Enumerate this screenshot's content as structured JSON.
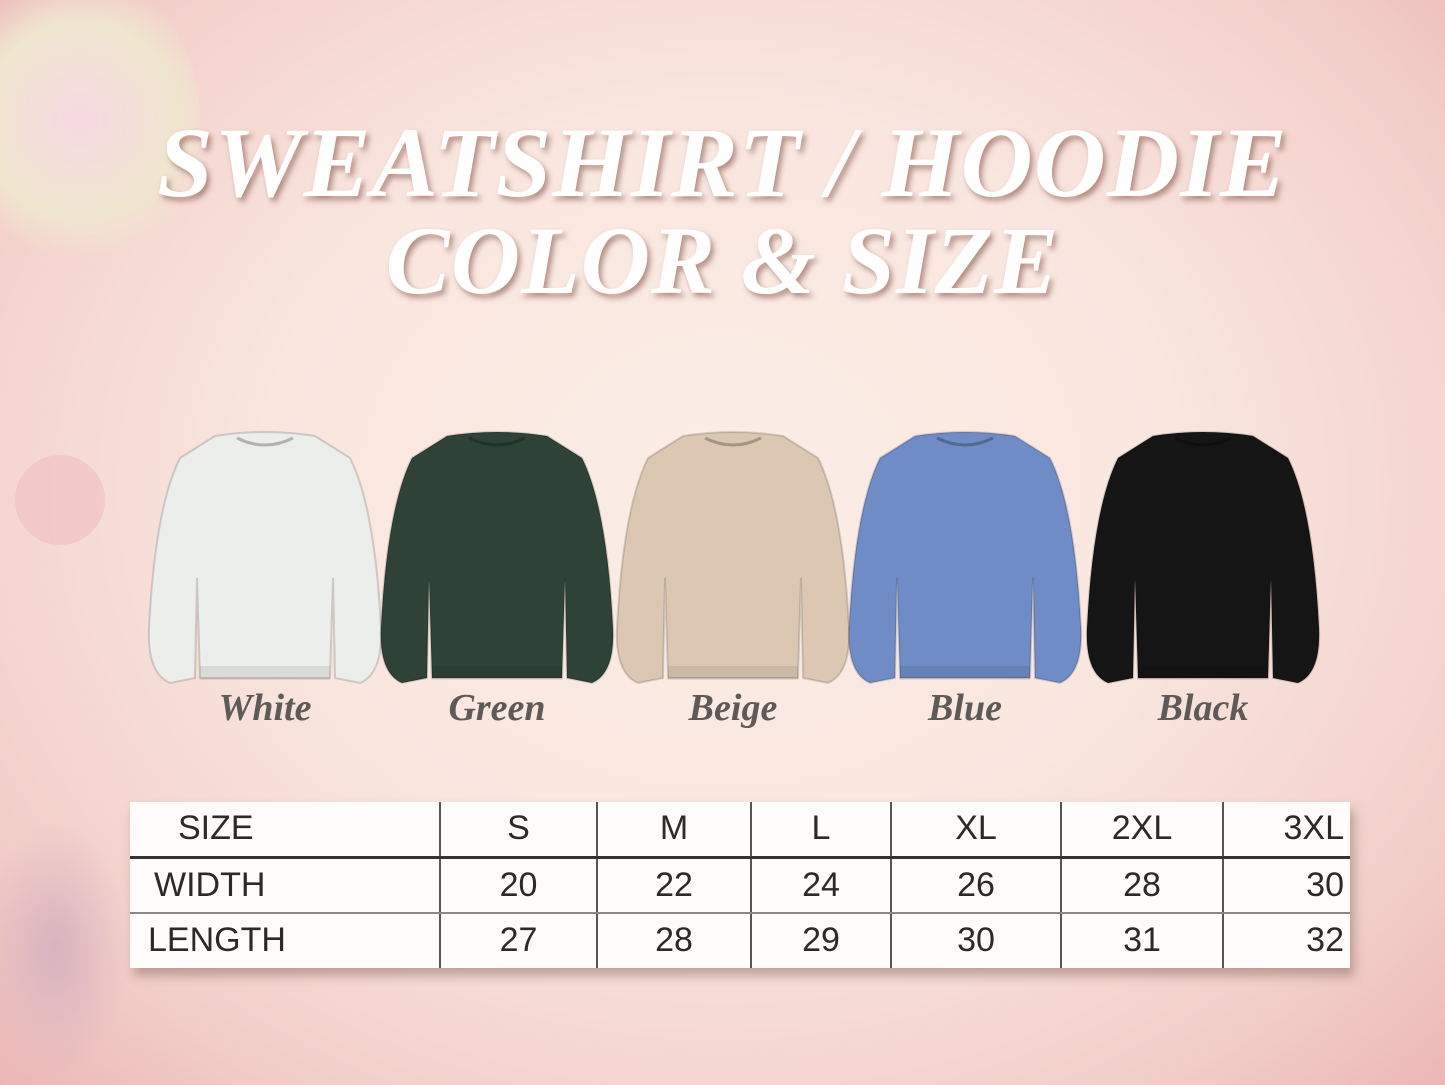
{
  "title": {
    "line1": "SWEATSHIRT / HOODIE",
    "line2": "COLOR & SIZE"
  },
  "colors": [
    {
      "name": "White",
      "hex": "#eceeec"
    },
    {
      "name": "Green",
      "hex": "#2f4238"
    },
    {
      "name": "Beige",
      "hex": "#dcc8b2"
    },
    {
      "name": "Blue",
      "hex": "#6f8cc6"
    },
    {
      "name": "Black",
      "hex": "#151515"
    }
  ],
  "size_table": {
    "header": [
      "SIZE",
      "S",
      "M",
      "L",
      "XL",
      "2XL",
      "3XL"
    ],
    "rows": [
      [
        "WIDTH",
        "20",
        "22",
        "24",
        "26",
        "28",
        "30"
      ],
      [
        "LENGTH",
        "27",
        "28",
        "29",
        "30",
        "31",
        "32"
      ]
    ]
  }
}
